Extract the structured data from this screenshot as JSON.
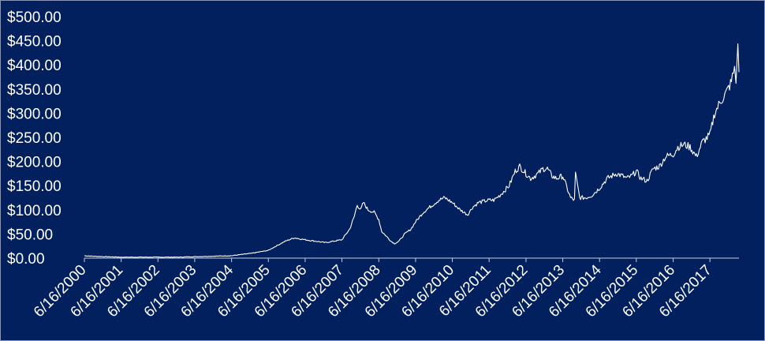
{
  "colors": {
    "background": "#02205e",
    "line": "#ffffff",
    "text": "#ffffff",
    "axis": "#c8cce0"
  },
  "chart_data": {
    "type": "line",
    "title": "",
    "xlabel": "",
    "ylabel": "",
    "grid": false,
    "legend": "none",
    "ylim": [
      0,
      500
    ],
    "y_ticks": [
      0,
      50,
      100,
      150,
      200,
      250,
      300,
      350,
      400,
      450,
      500
    ],
    "y_tick_labels": [
      "$0.00",
      "$50.00",
      "$100.00",
      "$150.00",
      "$200.00",
      "$250.00",
      "$300.00",
      "$350.00",
      "$400.00",
      "$450.00",
      "$500.00"
    ],
    "x_range": [
      "2000-06-16",
      "2018-03-31"
    ],
    "x_tick_labels": [
      "6/16/2000",
      "6/16/2001",
      "6/16/2002",
      "6/16/2003",
      "6/16/2004",
      "6/16/2005",
      "6/16/2006",
      "6/16/2007",
      "6/16/2008",
      "6/16/2009",
      "6/16/2010",
      "6/16/2011",
      "6/16/2012",
      "6/16/2013",
      "6/16/2014",
      "6/16/2015",
      "6/16/2016",
      "6/16/2017"
    ],
    "series": [
      {
        "x": [
          "2000-06-16",
          "2000-09-01",
          "2001-01-01",
          "2001-06-16",
          "2002-01-01",
          "2002-06-16",
          "2003-01-01",
          "2003-06-16",
          "2004-01-01",
          "2004-06-16",
          "2005-01-01",
          "2005-06-16",
          "2005-09-01",
          "2005-12-01",
          "2006-03-01",
          "2006-06-16",
          "2006-10-01",
          "2007-01-01",
          "2007-06-16",
          "2007-09-01",
          "2007-10-15",
          "2007-11-15",
          "2007-12-20",
          "2008-01-15",
          "2008-03-01",
          "2008-05-01",
          "2008-06-16",
          "2008-07-15",
          "2008-09-01",
          "2008-10-15",
          "2008-11-20",
          "2009-01-01",
          "2009-03-01",
          "2009-05-01",
          "2009-06-16",
          "2009-09-01",
          "2009-12-01",
          "2010-02-01",
          "2010-04-01",
          "2010-06-16",
          "2010-09-01",
          "2010-11-15",
          "2011-01-01",
          "2011-03-01",
          "2011-06-16",
          "2011-08-01",
          "2011-10-01",
          "2012-01-01",
          "2012-03-01",
          "2012-04-15",
          "2012-06-16",
          "2012-08-01",
          "2012-10-15",
          "2012-12-01",
          "2013-01-15",
          "2013-03-01",
          "2013-04-15",
          "2013-06-16",
          "2013-09-01",
          "2013-10-10",
          "2013-10-20",
          "2013-12-01",
          "2014-02-01",
          "2014-04-01",
          "2014-06-16",
          "2014-09-01",
          "2014-12-01",
          "2015-02-01",
          "2015-03-15",
          "2015-05-01",
          "2015-06-16",
          "2015-08-01",
          "2015-10-01",
          "2015-12-01",
          "2016-02-01",
          "2016-04-01",
          "2016-06-16",
          "2016-08-01",
          "2016-10-01",
          "2016-12-01",
          "2017-02-01",
          "2017-04-01",
          "2017-06-16",
          "2017-08-01",
          "2017-10-01",
          "2017-12-01",
          "2018-01-15",
          "2018-02-15",
          "2018-03-01",
          "2018-03-10",
          "2018-03-20",
          "2018-03-31"
        ],
        "y": [
          5,
          4,
          3,
          2,
          2,
          2,
          2,
          3,
          4,
          5,
          10,
          16,
          25,
          35,
          42,
          38,
          35,
          32,
          38,
          60,
          85,
          110,
          100,
          115,
          100,
          95,
          80,
          55,
          45,
          35,
          30,
          35,
          50,
          60,
          75,
          95,
          110,
          120,
          125,
          115,
          100,
          90,
          105,
          115,
          120,
          120,
          130,
          150,
          180,
          190,
          175,
          165,
          175,
          185,
          185,
          170,
          165,
          170,
          125,
          120,
          175,
          125,
          125,
          130,
          145,
          165,
          175,
          170,
          165,
          170,
          180,
          165,
          160,
          185,
          190,
          210,
          215,
          230,
          235,
          230,
          210,
          240,
          255,
          300,
          325,
          345,
          365,
          395,
          370,
          390,
          450,
          385
        ]
      }
    ]
  }
}
